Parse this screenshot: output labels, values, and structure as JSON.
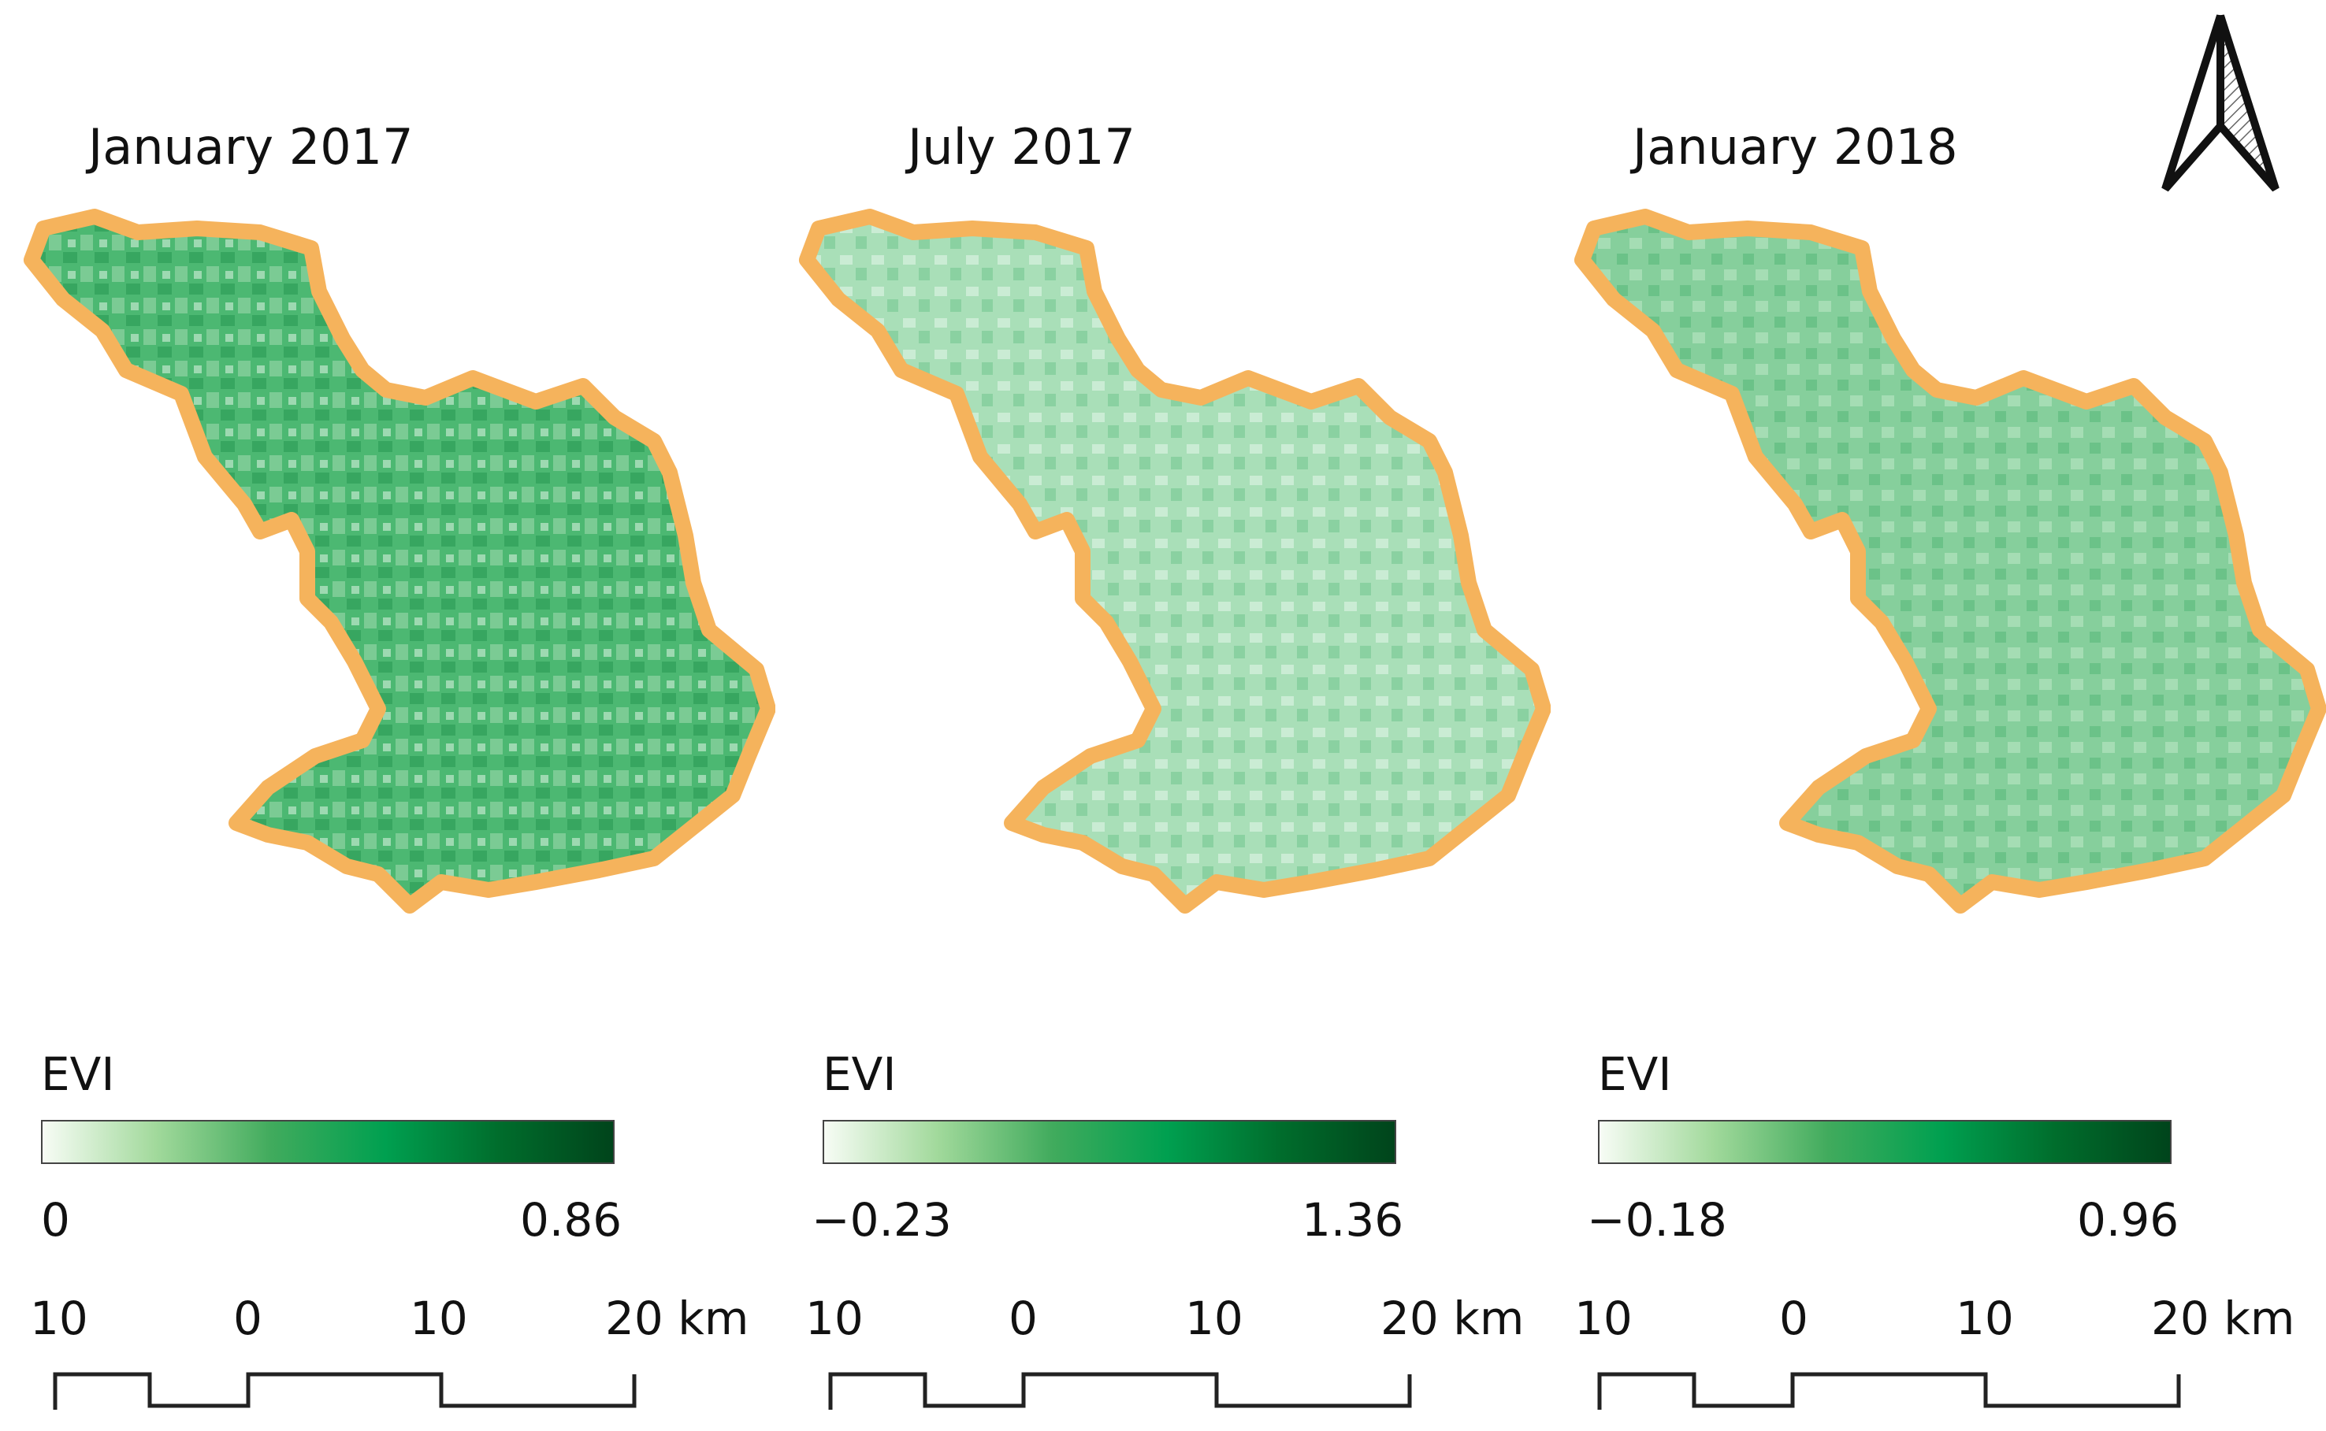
{
  "panels": [
    {
      "title": "January 2017",
      "legend_title": "EVI",
      "legend_min": "0",
      "legend_max": "0.86",
      "colorbar_gradient": [
        "#f7fcf5",
        "#a1d99b",
        "#41ab5d",
        "#00a050",
        "#006d2c",
        "#00441b"
      ],
      "fill_color": "#4cb872",
      "scale_labels": [
        "10",
        "0",
        "10",
        "20 km"
      ]
    },
    {
      "title": "July 2017",
      "legend_title": "EVI",
      "legend_min": "−0.23",
      "legend_max": "1.36",
      "colorbar_gradient": [
        "#f7fcf5",
        "#a1d99b",
        "#41ab5d",
        "#00a050",
        "#006d2c",
        "#00441b"
      ],
      "fill_color": "#a9dfb8",
      "scale_labels": [
        "10",
        "0",
        "10",
        "20 km"
      ]
    },
    {
      "title": "January 2018",
      "legend_title": "EVI",
      "legend_min": "−0.18",
      "legend_max": "0.96",
      "colorbar_gradient": [
        "#f7fcf5",
        "#a1d99b",
        "#41ab5d",
        "#00a050",
        "#006d2c",
        "#00441b"
      ],
      "fill_color": "#86cf9c",
      "scale_labels": [
        "10",
        "0",
        "10",
        "20 km"
      ]
    }
  ],
  "boundary_color": "#f5b35c",
  "north_arrow": "north-arrow-icon"
}
